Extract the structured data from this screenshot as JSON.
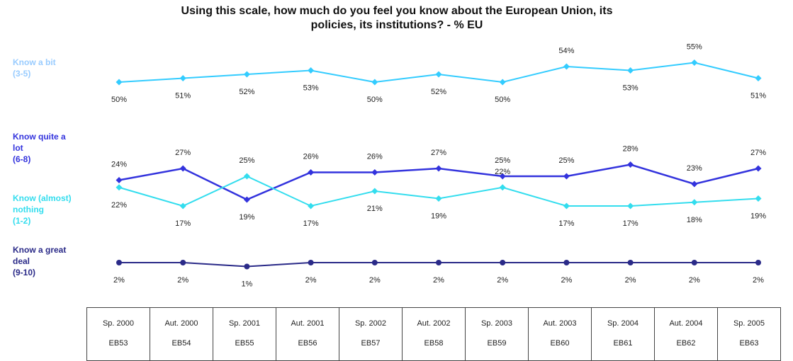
{
  "chart_data": {
    "type": "line",
    "title": "Using this scale, how much do you feel you know about the European Union, its\npolicies, its institutions? - % EU",
    "categories": [
      "Sp. 2000",
      "Aut. 2000",
      "Sp. 2001",
      "Aut. 2001",
      "Sp. 2002",
      "Aut. 2002",
      "Sp. 2003",
      "Aut. 2003",
      "Sp. 2004",
      "Aut. 2004",
      "Sp. 2005"
    ],
    "categories_sub": [
      "EB53",
      "EB54",
      "EB55",
      "EB56",
      "EB57",
      "EB58",
      "EB59",
      "EB60",
      "EB61",
      "EB62",
      "EB63"
    ],
    "series": [
      {
        "name": "Know a bit\n(3-5)",
        "color": "#33ccff",
        "values": [
          50,
          51,
          52,
          53,
          50,
          52,
          50,
          54,
          53,
          55,
          51
        ],
        "labels": [
          "50%",
          "51%",
          "52%",
          "53%",
          "50%",
          "52%",
          "50%",
          "54%",
          "53%",
          "55%",
          "51%"
        ]
      },
      {
        "name": "Know quite a\nlot\n(6-8)",
        "color": "#3333dd",
        "values": [
          24,
          27,
          19,
          26,
          26,
          27,
          25,
          25,
          28,
          23,
          27
        ],
        "labels": [
          "24%",
          "27%",
          "19%",
          "26%",
          "26%",
          "27%",
          "25%",
          "25%",
          "28%",
          "23%",
          "27%"
        ]
      },
      {
        "name": "Know (almost)\nnothing\n(1-2)",
        "color": "#33ddee",
        "values": [
          22,
          17,
          25,
          17,
          21,
          19,
          22,
          17,
          17,
          18,
          19
        ],
        "labels": [
          "22%",
          "17%",
          "25%",
          "17%",
          "21%",
          "19%",
          "22%",
          "17%",
          "17%",
          "18%",
          "19%"
        ]
      },
      {
        "name": "Know a great\ndeal\n(9-10)",
        "color": "#2a2a88",
        "values": [
          2,
          2,
          1,
          2,
          2,
          2,
          2,
          2,
          2,
          2,
          2
        ],
        "labels": [
          "2%",
          "2%",
          "1%",
          "2%",
          "2%",
          "2%",
          "2%",
          "2%",
          "2%",
          "2%",
          "2%"
        ]
      }
    ],
    "legend_position": "left",
    "grid": false
  }
}
